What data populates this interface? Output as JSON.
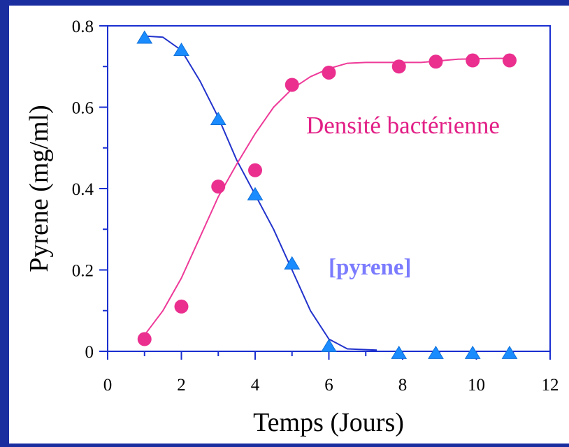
{
  "chart_data": {
    "type": "scatter",
    "title": "",
    "xlabel": "Temps (Jours)",
    "ylabel": "Pyrene (mg/ml)",
    "xlim": [
      0,
      12
    ],
    "ylim": [
      0,
      0.8
    ],
    "x_ticks": [
      "0",
      "2",
      "4",
      "6",
      "8",
      "10",
      "12"
    ],
    "y_ticks": [
      "0",
      "0.2",
      "0.4",
      "0.6",
      "0.8"
    ],
    "grid": false,
    "legend": "none",
    "series": [
      {
        "name": "[pyrene]",
        "marker": "triangle",
        "color": "#1a8cff",
        "line_color": "#2233cc",
        "points": [
          {
            "x": 1,
            "y": 0.77
          },
          {
            "x": 2,
            "y": 0.74
          },
          {
            "x": 3,
            "y": 0.57
          },
          {
            "x": 4,
            "y": 0.385
          },
          {
            "x": 5,
            "y": 0.215
          },
          {
            "x": 6,
            "y": 0.012
          },
          {
            "x": 7.9,
            "y": -0.005
          },
          {
            "x": 8.9,
            "y": -0.005
          },
          {
            "x": 9.9,
            "y": -0.005
          },
          {
            "x": 10.9,
            "y": -0.005
          }
        ],
        "fit": [
          {
            "x": 1,
            "y": 0.775
          },
          {
            "x": 1.5,
            "y": 0.772
          },
          {
            "x": 2,
            "y": 0.74
          },
          {
            "x": 2.5,
            "y": 0.665
          },
          {
            "x": 3,
            "y": 0.575
          },
          {
            "x": 3.5,
            "y": 0.47
          },
          {
            "x": 4,
            "y": 0.385
          },
          {
            "x": 4.5,
            "y": 0.3
          },
          {
            "x": 5,
            "y": 0.2
          },
          {
            "x": 5.5,
            "y": 0.1
          },
          {
            "x": 6,
            "y": 0.03
          },
          {
            "x": 6.5,
            "y": 0.006
          },
          {
            "x": 7.3,
            "y": 0.003
          }
        ]
      },
      {
        "name": "Densité bactérienne",
        "marker": "circle",
        "color": "#ea2f8f",
        "line_color": "#ee3a99",
        "points": [
          {
            "x": 1,
            "y": 0.03
          },
          {
            "x": 2,
            "y": 0.11
          },
          {
            "x": 3,
            "y": 0.405
          },
          {
            "x": 4,
            "y": 0.445
          },
          {
            "x": 5,
            "y": 0.655
          },
          {
            "x": 6,
            "y": 0.685
          },
          {
            "x": 7.9,
            "y": 0.7
          },
          {
            "x": 8.9,
            "y": 0.712
          },
          {
            "x": 9.9,
            "y": 0.715
          },
          {
            "x": 10.9,
            "y": 0.715
          }
        ],
        "fit": [
          {
            "x": 1,
            "y": 0.04
          },
          {
            "x": 1.5,
            "y": 0.1
          },
          {
            "x": 2,
            "y": 0.18
          },
          {
            "x": 2.5,
            "y": 0.28
          },
          {
            "x": 3,
            "y": 0.38
          },
          {
            "x": 3.5,
            "y": 0.46
          },
          {
            "x": 4,
            "y": 0.535
          },
          {
            "x": 4.5,
            "y": 0.6
          },
          {
            "x": 5,
            "y": 0.645
          },
          {
            "x": 5.5,
            "y": 0.675
          },
          {
            "x": 6,
            "y": 0.695
          },
          {
            "x": 6.5,
            "y": 0.708
          },
          {
            "x": 7,
            "y": 0.71
          },
          {
            "x": 8,
            "y": 0.71
          },
          {
            "x": 8.5,
            "y": 0.71
          },
          {
            "x": 9.5,
            "y": 0.718
          },
          {
            "x": 10.5,
            "y": 0.72
          },
          {
            "x": 11,
            "y": 0.72
          }
        ]
      }
    ],
    "annotations": [
      {
        "text": "Densité bactérienne",
        "color": "#e21f86",
        "near_series": "Densité bactérienne"
      },
      {
        "text": "[pyrene]",
        "color": "#7b7bff",
        "near_series": "[pyrene]"
      }
    ]
  }
}
